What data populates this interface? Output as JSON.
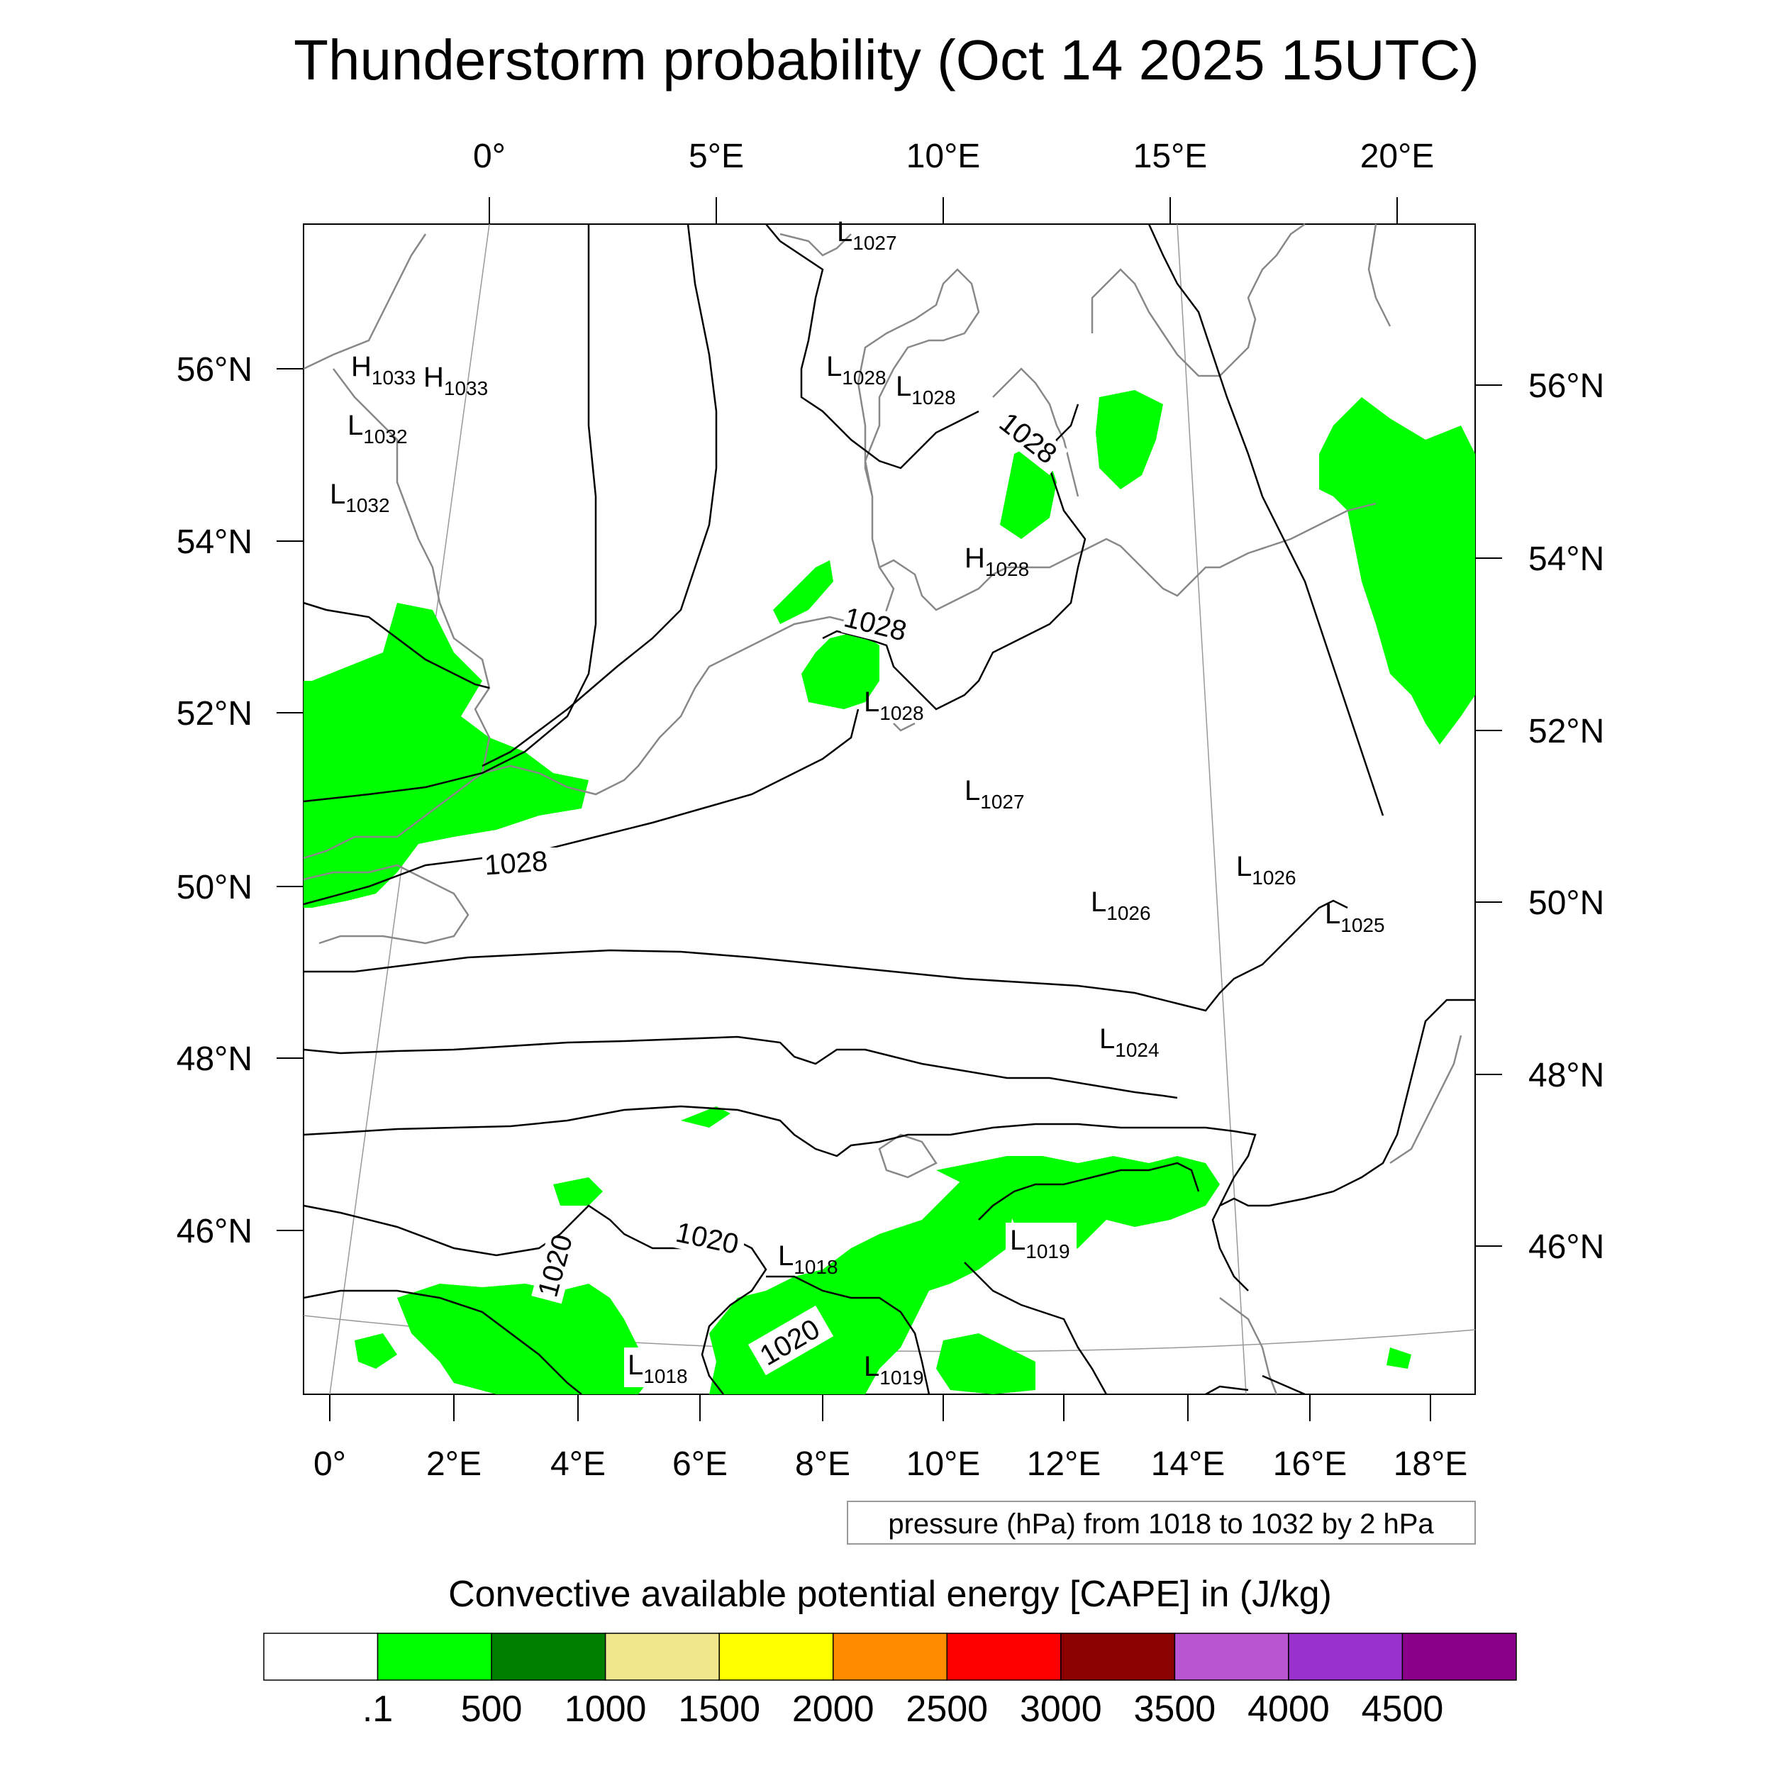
{
  "title": "Thunderstorm probability (Oct 14 2025 15UTC)",
  "top_lon_labels": [
    "0°",
    "5°E",
    "10°E",
    "15°E",
    "20°E"
  ],
  "bottom_lon_labels": [
    "0°",
    "2°E",
    "4°E",
    "6°E",
    "8°E",
    "10°E",
    "12°E",
    "14°E",
    "16°E",
    "18°E"
  ],
  "left_lat_labels": [
    "56°N",
    "54°N",
    "52°N",
    "50°N",
    "48°N",
    "46°N"
  ],
  "right_lat_labels": [
    "56°N",
    "54°N",
    "52°N",
    "50°N",
    "48°N",
    "46°N"
  ],
  "contour_note": "pressure (hPa) from 1018 to 1032 by 2 hPa",
  "colorbar": {
    "title": "Convective available potential energy [CAPE] in (J/kg)",
    "colors": [
      "#ffffff",
      "#00ff00",
      "#008000",
      "#f0e68c",
      "#ffff00",
      "#ff8c00",
      "#ff0000",
      "#8b0000",
      "#ba55d3",
      "#9932cc",
      "#8b008b"
    ],
    "tick_labels": [
      ".1",
      "500",
      "1000",
      "1500",
      "2000",
      "2500",
      "3000",
      "3500",
      "4000",
      "4500"
    ]
  },
  "pressure_labels": [
    {
      "main": "H",
      "sub": "1033"
    },
    {
      "main": "H",
      "sub": "1033"
    },
    {
      "main": "L",
      "sub": "1032"
    },
    {
      "main": "L",
      "sub": "1032"
    },
    {
      "main": "L",
      "sub": "1027"
    },
    {
      "main": "L",
      "sub": "1028"
    },
    {
      "main": "L",
      "sub": "1028"
    },
    {
      "main": "H",
      "sub": "1028"
    },
    {
      "main": "L",
      "sub": "1028"
    },
    {
      "main": "L",
      "sub": "1027"
    },
    {
      "main": "L",
      "sub": "1026"
    },
    {
      "main": "L",
      "sub": "1026"
    },
    {
      "main": "L",
      "sub": "1025"
    },
    {
      "main": "L",
      "sub": "1024"
    },
    {
      "main": "L",
      "sub": "1018"
    },
    {
      "main": "L",
      "sub": "1019"
    },
    {
      "main": "L",
      "sub": "1018"
    },
    {
      "main": "L",
      "sub": "1019"
    }
  ],
  "isobar_labels": [
    "1028",
    "1028",
    "1028",
    "1020",
    "1020",
    "1020"
  ]
}
